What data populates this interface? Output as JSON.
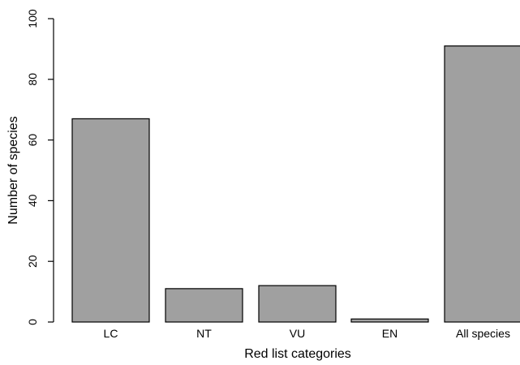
{
  "chart_data": {
    "type": "bar",
    "categories": [
      "LC",
      "NT",
      "VU",
      "EN",
      "All species"
    ],
    "values": [
      67,
      11,
      12,
      1,
      91
    ],
    "title": "",
    "xlabel": "Red list categories",
    "ylabel": "Number of species",
    "ylim": [
      0,
      100
    ],
    "yticks": [
      0,
      20,
      40,
      60,
      80,
      100
    ],
    "grid": false,
    "bar_color": "#a0a0a0",
    "edge_color": "#000000"
  }
}
